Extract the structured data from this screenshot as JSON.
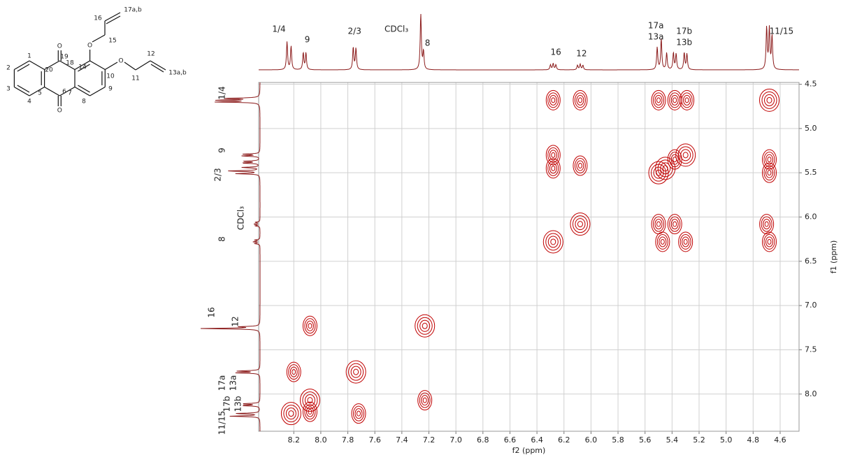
{
  "chart_data": {
    "type": "cosy",
    "x_label": "f2 (ppm)",
    "y_label": "f1 (ppm)",
    "xlim": [
      8.46,
      4.46
    ],
    "ylim": [
      4.48,
      8.42
    ],
    "xticks": [
      8.2,
      {
        "value": 8,
        "label": "8.0"
      },
      7.8,
      7.6,
      7.4,
      7.2,
      {
        "value": 7,
        "label": "7.0"
      },
      6.8,
      6.6,
      6.4,
      6.2,
      {
        "value": 6,
        "label": "6.0"
      },
      5.8,
      5.6,
      5.4,
      5.2,
      {
        "value": 5,
        "label": "5.0"
      },
      4.8,
      4.6
    ],
    "yticks": [
      4.5,
      {
        "value": 5,
        "label": "5.0"
      },
      5.5,
      {
        "value": 6,
        "label": "6.0"
      },
      6.5,
      {
        "value": 7,
        "label": "7.0"
      },
      7.5,
      {
        "value": 8,
        "label": "8.0"
      }
    ],
    "grid": true,
    "color": "#c00000",
    "cross_peaks": {
      "x": [
        4.68,
        6.28,
        6.08,
        5.5,
        5.38,
        5.29,
        6.28,
        6.28,
        6.08,
        5.5,
        5.45,
        5.38,
        5.3,
        4.68,
        4.68,
        6.08,
        5.5,
        5.38,
        4.7,
        6.28,
        5.47,
        5.3,
        4.68,
        8.08,
        7.23,
        8.2,
        7.74,
        8.08,
        7.23,
        8.22,
        8.08,
        7.72
      ],
      "y": [
        4.68,
        4.68,
        4.68,
        4.68,
        4.68,
        4.68,
        5.3,
        5.45,
        5.42,
        5.5,
        5.45,
        5.35,
        5.3,
        5.35,
        5.5,
        6.08,
        6.08,
        6.08,
        6.08,
        6.28,
        6.28,
        6.28,
        6.28,
        7.23,
        7.23,
        7.75,
        7.75,
        8.07,
        8.07,
        8.22,
        8.2,
        8.22
      ]
    },
    "trace": {
      "ppm": [
        8.25,
        8.22,
        8.13,
        8.11,
        7.76,
        7.74,
        7.26,
        7.24,
        6.3,
        6.28,
        6.26,
        6.1,
        6.08,
        6.06,
        5.51,
        5.48,
        5.44,
        5.39,
        5.37,
        5.31,
        5.29,
        4.7,
        4.68,
        4.66
      ],
      "height": [
        50,
        42,
        30,
        30,
        40,
        38,
        100,
        32,
        9,
        11,
        9,
        8,
        10,
        8,
        40,
        55,
        30,
        30,
        28,
        30,
        28,
        75,
        72,
        60
      ]
    },
    "annotations": [
      {
        "text": [
          "1/4"
        ],
        "ppm": 8.31
      },
      {
        "text": [
          "9"
        ],
        "ppm": 8.1
      },
      {
        "text": [
          "2/3"
        ],
        "ppm": 7.75
      },
      {
        "text": [
          "CDCl₃"
        ],
        "ppm": 7.44
      },
      {
        "text": [
          "8"
        ],
        "ppm": 7.21
      },
      {
        "text": [
          "16"
        ],
        "ppm": 6.26
      },
      {
        "text": [
          "12"
        ],
        "ppm": 6.07
      },
      {
        "text": [
          "17a",
          "13a"
        ],
        "ppm": 5.52
      },
      {
        "text": [
          "17b",
          "13b"
        ],
        "ppm": 5.31
      },
      {
        "text": [
          "11/15"
        ],
        "ppm": 4.59
      }
    ]
  },
  "structure": {
    "labels": [
      "1",
      "2",
      "3",
      "4",
      "5",
      "6",
      "7",
      "8",
      "9",
      "10",
      "11",
      "12",
      "13a,b",
      "14",
      "15",
      "16",
      "17a,b",
      "18",
      "19",
      "20",
      "O",
      "O",
      "O",
      "O"
    ]
  }
}
